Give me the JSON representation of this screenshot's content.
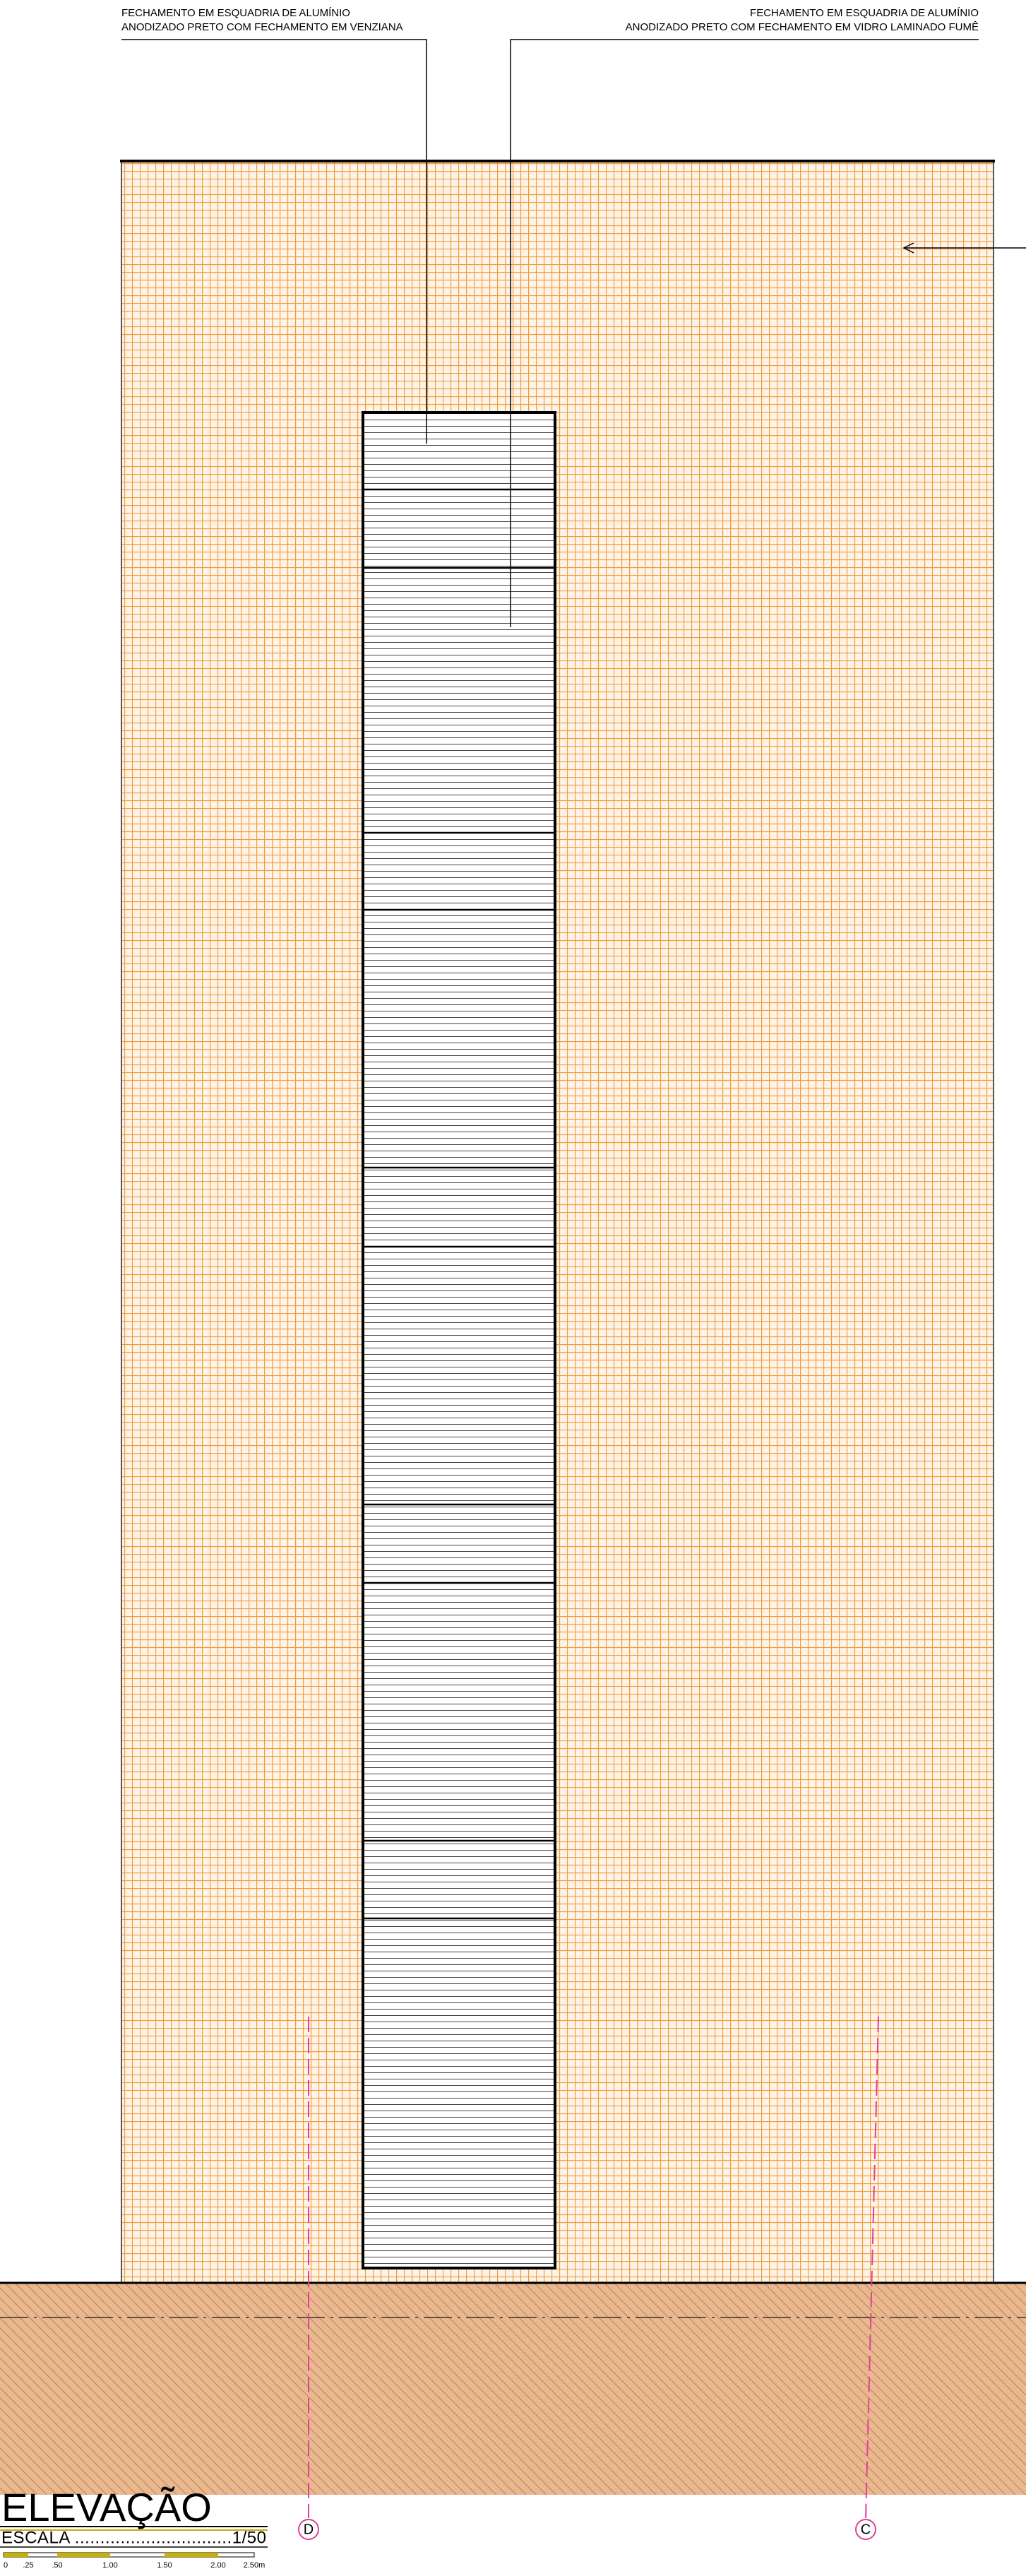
{
  "notes": [
    {
      "lines": [
        "FECHAMENTO EM ESQUADRIA DE ALUMÍNIO",
        "ANODIZADO PRETO COM FECHAMENTO EM VENZIANA"
      ]
    },
    {
      "lines": [
        "FECHAMENTO EM ESQUADRIA DE ALUMÍNIO",
        "ANODIZADO PRETO COM FECHAMENTO EM VIDRO LAMINADO FUMÊ"
      ]
    }
  ],
  "axes": [
    "D",
    "C"
  ],
  "title_block": {
    "title": "ELEVAÇÃO",
    "scale_label": "ESCALA ...............................1/50",
    "scale_bar": [
      "0",
      ".25",
      ".50",
      "1.00",
      "1.50",
      "2.00",
      "2.50m"
    ]
  }
}
